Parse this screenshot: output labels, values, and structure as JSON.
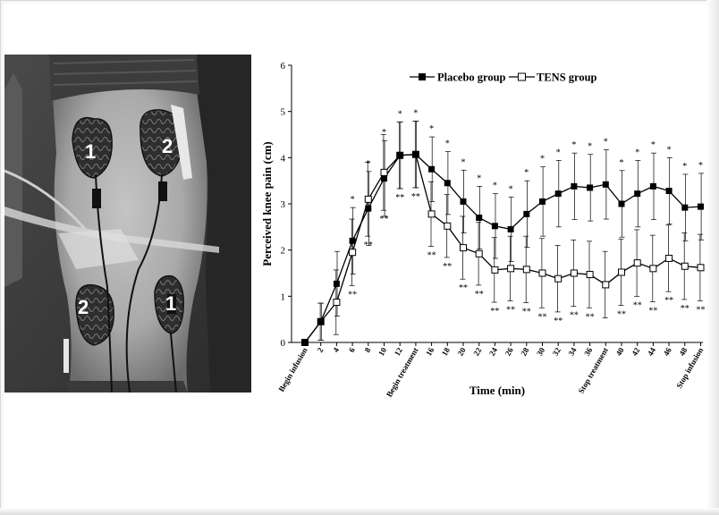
{
  "photo": {
    "electrode_labels": [
      "1",
      "2",
      "2",
      "1"
    ]
  },
  "chart_data": {
    "type": "line",
    "xlabel": "Time (min)",
    "ylabel": "Perceived knee pain (cm)",
    "ylim": [
      0,
      6
    ],
    "yticks": [
      "0",
      "1",
      "2",
      "3",
      "4",
      "5",
      "6"
    ],
    "x_ticks": [
      "Begin infusion",
      "2",
      "4",
      "6",
      "8",
      "10",
      "12",
      "Begin treatment",
      "16",
      "18",
      "20",
      "22",
      "24",
      "26",
      "28",
      "30",
      "32",
      "34",
      "36",
      "Stop treatment",
      "40",
      "42",
      "44",
      "46",
      "48",
      "Stop infusion"
    ],
    "x": [
      0,
      2,
      4,
      6,
      8,
      10,
      12,
      14,
      16,
      18,
      20,
      22,
      24,
      26,
      28,
      30,
      32,
      34,
      36,
      38,
      40,
      42,
      44,
      46,
      48,
      50
    ],
    "legend_position": "top-right",
    "series": [
      {
        "name": "Placebo group",
        "marker": "filled-square",
        "values": [
          0,
          0.45,
          1.27,
          2.2,
          2.9,
          3.55,
          4.05,
          4.07,
          3.75,
          3.45,
          3.05,
          2.7,
          2.52,
          2.45,
          2.78,
          3.05,
          3.22,
          3.38,
          3.35,
          3.42,
          3.0,
          3.22,
          3.38,
          3.28,
          2.92,
          2.94
        ],
        "error": [
          0,
          0.4,
          0.7,
          0.72,
          0.8,
          0.82,
          0.72,
          0.72,
          0.7,
          0.68,
          0.68,
          0.68,
          0.7,
          0.7,
          0.72,
          0.75,
          0.72,
          0.72,
          0.72,
          0.75,
          0.72,
          0.72,
          0.72,
          0.72,
          0.72,
          0.72
        ],
        "significance": [
          "",
          "",
          "",
          "*",
          "*",
          "*",
          "*",
          "*",
          "*",
          "*",
          "*",
          "*",
          "*",
          "*",
          "*",
          "*",
          "*",
          "*",
          "*",
          "*",
          "*",
          "*",
          "*",
          "*",
          "*",
          "*"
        ]
      },
      {
        "name": "TENS group",
        "marker": "open-square",
        "values": [
          0,
          0.45,
          0.87,
          1.95,
          3.1,
          3.68,
          4.05,
          4.07,
          2.78,
          2.52,
          2.05,
          1.92,
          1.57,
          1.6,
          1.58,
          1.5,
          1.38,
          1.5,
          1.47,
          1.25,
          1.52,
          1.72,
          1.6,
          1.82,
          1.65,
          1.62
        ],
        "error": [
          0,
          0.4,
          0.7,
          0.72,
          0.8,
          0.82,
          0.72,
          0.72,
          0.7,
          0.68,
          0.68,
          0.68,
          0.7,
          0.7,
          0.72,
          0.75,
          0.72,
          0.72,
          0.72,
          0.72,
          0.72,
          0.72,
          0.72,
          0.72,
          0.72,
          0.72
        ],
        "significance": [
          "",
          "",
          "",
          "**",
          "**",
          "**",
          "**",
          "**",
          "**",
          "**",
          "**",
          "**",
          "**",
          "**",
          "**",
          "**",
          "**",
          "**",
          "**",
          "",
          "**",
          "**",
          "**",
          "**",
          "**",
          "**"
        ]
      }
    ]
  }
}
